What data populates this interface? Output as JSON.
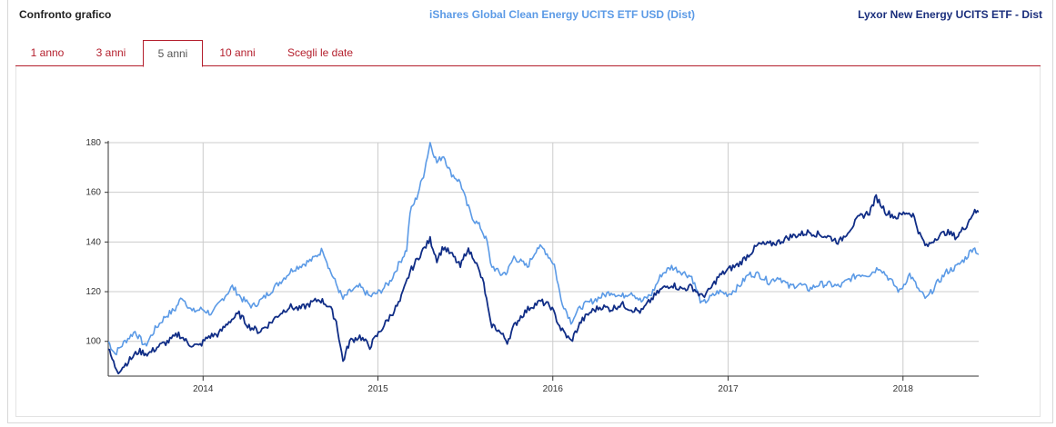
{
  "header": {
    "title": "Confronto grafico",
    "series1_label": "iShares Global Clean Energy UCITS ETF USD (Dist)",
    "series2_label": "Lyxor New Energy UCITS ETF - Dist"
  },
  "tabs": [
    {
      "label": "1 anno"
    },
    {
      "label": "3 anni"
    },
    {
      "label": "5 anni"
    },
    {
      "label": "10 anni"
    },
    {
      "label": "Scegli le date"
    }
  ],
  "active_tab": "5 anni",
  "colors": {
    "series1": "#5b9ae6",
    "series2": "#102d86",
    "tab_accent": "#b41e2c"
  },
  "chart_data": {
    "type": "line",
    "x_type": "date",
    "xlim": [
      "2013-06-17",
      "2018-06-08"
    ],
    "ylim": [
      86,
      180
    ],
    "yticks": [
      100,
      120,
      140,
      160,
      180
    ],
    "xticks": [
      {
        "label": "2014",
        "date": "2014-01-01"
      },
      {
        "label": "2015",
        "date": "2015-01-01"
      },
      {
        "label": "2016",
        "date": "2016-01-01"
      },
      {
        "label": "2017",
        "date": "2017-01-01"
      },
      {
        "label": "2018",
        "date": "2018-01-01"
      }
    ],
    "grid": true,
    "series": [
      {
        "name": "iShares Global Clean Energy UCITS ETF USD (Dist)",
        "color": "#5b9ae6",
        "points": [
          [
            "2013-06-17",
            100
          ],
          [
            "2013-07-01",
            95
          ],
          [
            "2013-07-22",
            100
          ],
          [
            "2013-08-12",
            104
          ],
          [
            "2013-09-02",
            98
          ],
          [
            "2013-09-23",
            105
          ],
          [
            "2013-10-14",
            110
          ],
          [
            "2013-11-04",
            113
          ],
          [
            "2013-11-18",
            118
          ],
          [
            "2013-12-09",
            112
          ],
          [
            "2013-12-30",
            113
          ],
          [
            "2014-01-20",
            111
          ],
          [
            "2014-02-10",
            117
          ],
          [
            "2014-03-03",
            122
          ],
          [
            "2014-03-24",
            117
          ],
          [
            "2014-04-14",
            114
          ],
          [
            "2014-05-05",
            117
          ],
          [
            "2014-05-26",
            121
          ],
          [
            "2014-06-16",
            125
          ],
          [
            "2014-07-07",
            129
          ],
          [
            "2014-07-28",
            131
          ],
          [
            "2014-08-18",
            133
          ],
          [
            "2014-09-08",
            137
          ],
          [
            "2014-09-22",
            129
          ],
          [
            "2014-10-06",
            123
          ],
          [
            "2014-10-20",
            117
          ],
          [
            "2014-11-03",
            120
          ],
          [
            "2014-11-24",
            122
          ],
          [
            "2014-12-15",
            118
          ],
          [
            "2015-01-05",
            120
          ],
          [
            "2015-01-26",
            124
          ],
          [
            "2015-02-16",
            132
          ],
          [
            "2015-03-02",
            137
          ],
          [
            "2015-03-09",
            152
          ],
          [
            "2015-03-23",
            158
          ],
          [
            "2015-04-06",
            167
          ],
          [
            "2015-04-20",
            180
          ],
          [
            "2015-05-04",
            172
          ],
          [
            "2015-05-18",
            175
          ],
          [
            "2015-06-01",
            168
          ],
          [
            "2015-06-22",
            164
          ],
          [
            "2015-07-06",
            155
          ],
          [
            "2015-07-20",
            149
          ],
          [
            "2015-08-03",
            146
          ],
          [
            "2015-08-17",
            140
          ],
          [
            "2015-08-24",
            131
          ],
          [
            "2015-09-14",
            127
          ],
          [
            "2015-09-28",
            128
          ],
          [
            "2015-10-12",
            134
          ],
          [
            "2015-10-26",
            132
          ],
          [
            "2015-11-09",
            130
          ],
          [
            "2015-11-30",
            138
          ],
          [
            "2015-12-14",
            137
          ],
          [
            "2016-01-04",
            131
          ],
          [
            "2016-01-18",
            117
          ],
          [
            "2016-02-08",
            108
          ],
          [
            "2016-02-29",
            114
          ],
          [
            "2016-03-21",
            116
          ],
          [
            "2016-04-11",
            118
          ],
          [
            "2016-05-02",
            120
          ],
          [
            "2016-05-23",
            118
          ],
          [
            "2016-06-13",
            120
          ],
          [
            "2016-07-04",
            116
          ],
          [
            "2016-07-25",
            119
          ],
          [
            "2016-08-15",
            127
          ],
          [
            "2016-09-05",
            130
          ],
          [
            "2016-09-26",
            128
          ],
          [
            "2016-10-17",
            126
          ],
          [
            "2016-11-07",
            115
          ],
          [
            "2016-11-21",
            117
          ],
          [
            "2016-12-12",
            120
          ],
          [
            "2017-01-02",
            119
          ],
          [
            "2017-01-23",
            122
          ],
          [
            "2017-02-13",
            127
          ],
          [
            "2017-03-06",
            127
          ],
          [
            "2017-03-27",
            124
          ],
          [
            "2017-04-17",
            126
          ],
          [
            "2017-05-08",
            122
          ],
          [
            "2017-05-29",
            123
          ],
          [
            "2017-06-19",
            121
          ],
          [
            "2017-07-10",
            123
          ],
          [
            "2017-07-31",
            123
          ],
          [
            "2017-08-21",
            122
          ],
          [
            "2017-09-11",
            125
          ],
          [
            "2017-10-02",
            127
          ],
          [
            "2017-10-23",
            127
          ],
          [
            "2017-11-13",
            130
          ],
          [
            "2017-12-04",
            125
          ],
          [
            "2017-12-25",
            120
          ],
          [
            "2018-01-15",
            127
          ],
          [
            "2018-02-05",
            120
          ],
          [
            "2018-02-19",
            117
          ],
          [
            "2018-03-12",
            123
          ],
          [
            "2018-04-02",
            128
          ],
          [
            "2018-04-23",
            130
          ],
          [
            "2018-05-14",
            134
          ],
          [
            "2018-05-28",
            138
          ],
          [
            "2018-06-08",
            135
          ]
        ]
      },
      {
        "name": "Lyxor New Energy UCITS ETF - Dist",
        "color": "#102d86",
        "points": [
          [
            "2013-06-17",
            97
          ],
          [
            "2013-07-01",
            90
          ],
          [
            "2013-07-08",
            88
          ],
          [
            "2013-07-29",
            92
          ],
          [
            "2013-08-19",
            96
          ],
          [
            "2013-09-09",
            95
          ],
          [
            "2013-09-30",
            98
          ],
          [
            "2013-10-21",
            100
          ],
          [
            "2013-11-11",
            103
          ],
          [
            "2013-12-02",
            99
          ],
          [
            "2013-12-23",
            98
          ],
          [
            "2014-01-13",
            102
          ],
          [
            "2014-02-03",
            103
          ],
          [
            "2014-02-24",
            108
          ],
          [
            "2014-03-17",
            111
          ],
          [
            "2014-04-07",
            106
          ],
          [
            "2014-04-28",
            104
          ],
          [
            "2014-05-19",
            107
          ],
          [
            "2014-06-09",
            111
          ],
          [
            "2014-06-30",
            114
          ],
          [
            "2014-07-21",
            113
          ],
          [
            "2014-08-11",
            115
          ],
          [
            "2014-09-01",
            117
          ],
          [
            "2014-09-22",
            114
          ],
          [
            "2014-10-06",
            108
          ],
          [
            "2014-10-20",
            92
          ],
          [
            "2014-11-03",
            100
          ],
          [
            "2014-11-24",
            102
          ],
          [
            "2014-12-15",
            98
          ],
          [
            "2015-01-05",
            104
          ],
          [
            "2015-01-26",
            110
          ],
          [
            "2015-02-16",
            116
          ],
          [
            "2015-03-09",
            128
          ],
          [
            "2015-03-30",
            135
          ],
          [
            "2015-04-20",
            141
          ],
          [
            "2015-05-04",
            133
          ],
          [
            "2015-05-18",
            138
          ],
          [
            "2015-06-08",
            134
          ],
          [
            "2015-06-22",
            130
          ],
          [
            "2015-07-06",
            137
          ],
          [
            "2015-07-20",
            134
          ],
          [
            "2015-08-10",
            123
          ],
          [
            "2015-08-24",
            107
          ],
          [
            "2015-09-07",
            105
          ],
          [
            "2015-09-28",
            100
          ],
          [
            "2015-10-12",
            106
          ],
          [
            "2015-10-26",
            110
          ],
          [
            "2015-11-16",
            114
          ],
          [
            "2015-12-07",
            116
          ],
          [
            "2015-12-28",
            114
          ],
          [
            "2016-01-18",
            105
          ],
          [
            "2016-02-08",
            100
          ],
          [
            "2016-02-29",
            108
          ],
          [
            "2016-03-21",
            112
          ],
          [
            "2016-04-11",
            114
          ],
          [
            "2016-05-02",
            113
          ],
          [
            "2016-05-23",
            115
          ],
          [
            "2016-06-13",
            113
          ],
          [
            "2016-07-04",
            112
          ],
          [
            "2016-07-25",
            117
          ],
          [
            "2016-08-15",
            121
          ],
          [
            "2016-09-05",
            123
          ],
          [
            "2016-09-26",
            121
          ],
          [
            "2016-10-17",
            122
          ],
          [
            "2016-11-07",
            118
          ],
          [
            "2016-11-21",
            120
          ],
          [
            "2016-12-12",
            126
          ],
          [
            "2017-01-02",
            129
          ],
          [
            "2017-01-23",
            131
          ],
          [
            "2017-02-13",
            135
          ],
          [
            "2017-03-06",
            139
          ],
          [
            "2017-03-27",
            139
          ],
          [
            "2017-04-17",
            140
          ],
          [
            "2017-05-08",
            142
          ],
          [
            "2017-05-29",
            143
          ],
          [
            "2017-06-19",
            144
          ],
          [
            "2017-07-10",
            143
          ],
          [
            "2017-07-31",
            142
          ],
          [
            "2017-08-21",
            140
          ],
          [
            "2017-09-11",
            145
          ],
          [
            "2017-10-02",
            150
          ],
          [
            "2017-10-23",
            152
          ],
          [
            "2017-11-06",
            158
          ],
          [
            "2017-11-27",
            152
          ],
          [
            "2017-12-18",
            150
          ],
          [
            "2018-01-08",
            152
          ],
          [
            "2018-01-22",
            151
          ],
          [
            "2018-02-05",
            143
          ],
          [
            "2018-02-19",
            138
          ],
          [
            "2018-03-12",
            142
          ],
          [
            "2018-04-02",
            144
          ],
          [
            "2018-04-23",
            142
          ],
          [
            "2018-05-14",
            147
          ],
          [
            "2018-05-28",
            152
          ],
          [
            "2018-06-08",
            152
          ]
        ]
      }
    ]
  }
}
